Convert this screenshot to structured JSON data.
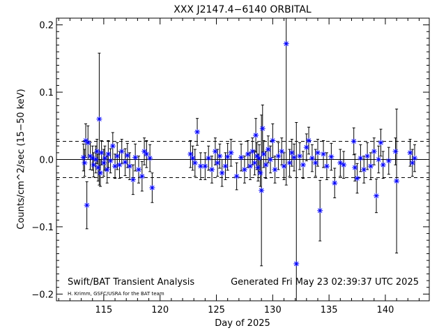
{
  "chart_data": {
    "type": "scatter",
    "title": "XXX J2147.4−6140 ORBITAL",
    "xlabel": "Day of 2025",
    "ylabel": "Counts/cm^2/sec (15−50 keV)",
    "xlim": [
      110.8,
      143.9
    ],
    "ylim": [
      -0.21,
      0.21
    ],
    "x_ticks": [
      115,
      120,
      125,
      130,
      135,
      140
    ],
    "x_tick_labels": [
      "115",
      "120",
      "125",
      "130",
      "135",
      "140"
    ],
    "y_ticks": [
      -0.2,
      -0.1,
      0.0,
      0.1,
      0.2
    ],
    "y_tick_labels": [
      "−0.2",
      "−0.1",
      "0.0",
      "0.1",
      "0.2"
    ],
    "reference_lines": {
      "zero": 0.0,
      "upper": 0.027,
      "lower": -0.027
    },
    "series_color": "#0000ff",
    "annotations": {
      "left_main": "Swift/BAT Transient Analysis",
      "left_credit": "H. Krimm, GSFC/USRA for the BAT team",
      "right": "Generated Fri May 23 02:39:37 UTC 2025"
    },
    "points": [
      {
        "x": 113.2,
        "y": 0.003,
        "err": 0.02
      },
      {
        "x": 113.3,
        "y": -0.005,
        "err": 0.02
      },
      {
        "x": 113.4,
        "y": 0.028,
        "err": 0.025
      },
      {
        "x": 113.5,
        "y": -0.068,
        "err": 0.035
      },
      {
        "x": 113.6,
        "y": 0.025,
        "err": 0.025
      },
      {
        "x": 113.8,
        "y": 0.005,
        "err": 0.02
      },
      {
        "x": 114.0,
        "y": 0.002,
        "err": 0.018
      },
      {
        "x": 114.1,
        "y": -0.008,
        "err": 0.018
      },
      {
        "x": 114.3,
        "y": 0.0,
        "err": 0.02
      },
      {
        "x": 114.4,
        "y": 0.012,
        "err": 0.018
      },
      {
        "x": 114.5,
        "y": -0.012,
        "err": 0.02
      },
      {
        "x": 114.6,
        "y": 0.06,
        "err": 0.098
      },
      {
        "x": 114.7,
        "y": -0.02,
        "err": 0.02
      },
      {
        "x": 114.8,
        "y": 0.01,
        "err": 0.018
      },
      {
        "x": 115.0,
        "y": -0.005,
        "err": 0.02
      },
      {
        "x": 115.1,
        "y": 0.002,
        "err": 0.018
      },
      {
        "x": 115.3,
        "y": -0.015,
        "err": 0.02
      },
      {
        "x": 115.4,
        "y": 0.008,
        "err": 0.02
      },
      {
        "x": 115.6,
        "y": -0.002,
        "err": 0.018
      },
      {
        "x": 115.8,
        "y": 0.02,
        "err": 0.02
      },
      {
        "x": 116.0,
        "y": -0.01,
        "err": 0.018
      },
      {
        "x": 116.2,
        "y": 0.005,
        "err": 0.02
      },
      {
        "x": 116.4,
        "y": -0.008,
        "err": 0.02
      },
      {
        "x": 116.6,
        "y": 0.012,
        "err": 0.018
      },
      {
        "x": 116.9,
        "y": -0.004,
        "err": 0.02
      },
      {
        "x": 117.1,
        "y": 0.006,
        "err": 0.018
      },
      {
        "x": 117.3,
        "y": -0.01,
        "err": 0.02
      },
      {
        "x": 117.6,
        "y": -0.03,
        "err": 0.022
      },
      {
        "x": 117.8,
        "y": 0.003,
        "err": 0.02
      },
      {
        "x": 118.1,
        "y": -0.015,
        "err": 0.02
      },
      {
        "x": 118.4,
        "y": -0.025,
        "err": 0.022
      },
      {
        "x": 118.6,
        "y": 0.012,
        "err": 0.02
      },
      {
        "x": 118.8,
        "y": 0.008,
        "err": 0.02
      },
      {
        "x": 119.1,
        "y": 0.002,
        "err": 0.02
      },
      {
        "x": 119.3,
        "y": -0.042,
        "err": 0.022
      },
      {
        "x": 122.7,
        "y": 0.008,
        "err": 0.02
      },
      {
        "x": 122.9,
        "y": 0.002,
        "err": 0.018
      },
      {
        "x": 123.1,
        "y": -0.005,
        "err": 0.02
      },
      {
        "x": 123.3,
        "y": 0.041,
        "err": 0.02
      },
      {
        "x": 123.6,
        "y": -0.01,
        "err": 0.02
      },
      {
        "x": 124.0,
        "y": -0.01,
        "err": 0.02
      },
      {
        "x": 124.3,
        "y": 0.002,
        "err": 0.018
      },
      {
        "x": 124.6,
        "y": -0.015,
        "err": 0.02
      },
      {
        "x": 124.9,
        "y": 0.012,
        "err": 0.02
      },
      {
        "x": 125.1,
        "y": -0.005,
        "err": 0.02
      },
      {
        "x": 125.3,
        "y": 0.005,
        "err": 0.018
      },
      {
        "x": 125.5,
        "y": -0.02,
        "err": 0.02
      },
      {
        "x": 125.8,
        "y": -0.01,
        "err": 0.02
      },
      {
        "x": 126.0,
        "y": 0.004,
        "err": 0.02
      },
      {
        "x": 126.3,
        "y": 0.01,
        "err": 0.02
      },
      {
        "x": 126.8,
        "y": -0.025,
        "err": 0.02
      },
      {
        "x": 127.2,
        "y": 0.003,
        "err": 0.02
      },
      {
        "x": 127.5,
        "y": -0.015,
        "err": 0.02
      },
      {
        "x": 127.8,
        "y": 0.008,
        "err": 0.02
      },
      {
        "x": 128.0,
        "y": -0.01,
        "err": 0.02
      },
      {
        "x": 128.2,
        "y": 0.012,
        "err": 0.02
      },
      {
        "x": 128.4,
        "y": -0.005,
        "err": 0.018
      },
      {
        "x": 128.5,
        "y": 0.036,
        "err": 0.025
      },
      {
        "x": 128.6,
        "y": 0.005,
        "err": 0.02
      },
      {
        "x": 128.7,
        "y": -0.012,
        "err": 0.02
      },
      {
        "x": 128.8,
        "y": 0.002,
        "err": 0.02
      },
      {
        "x": 128.9,
        "y": -0.02,
        "err": 0.02
      },
      {
        "x": 129.0,
        "y": -0.046,
        "err": 0.112
      },
      {
        "x": 129.1,
        "y": 0.046,
        "err": 0.035
      },
      {
        "x": 129.2,
        "y": 0.008,
        "err": 0.02
      },
      {
        "x": 129.4,
        "y": -0.008,
        "err": 0.02
      },
      {
        "x": 129.6,
        "y": 0.015,
        "err": 0.02
      },
      {
        "x": 129.8,
        "y": 0.0,
        "err": 0.02
      },
      {
        "x": 130.0,
        "y": 0.028,
        "err": 0.025
      },
      {
        "x": 130.2,
        "y": -0.015,
        "err": 0.02
      },
      {
        "x": 130.5,
        "y": 0.005,
        "err": 0.02
      },
      {
        "x": 130.8,
        "y": 0.012,
        "err": 0.02
      },
      {
        "x": 131.0,
        "y": -0.01,
        "err": 0.02
      },
      {
        "x": 131.2,
        "y": 0.172,
        "err": 0.21
      },
      {
        "x": 131.5,
        "y": -0.005,
        "err": 0.02
      },
      {
        "x": 131.7,
        "y": 0.01,
        "err": 0.02
      },
      {
        "x": 131.9,
        "y": 0.003,
        "err": 0.02
      },
      {
        "x": 132.1,
        "y": -0.155,
        "err": 0.21
      },
      {
        "x": 132.4,
        "y": 0.005,
        "err": 0.02
      },
      {
        "x": 132.7,
        "y": -0.008,
        "err": 0.02
      },
      {
        "x": 133.0,
        "y": 0.018,
        "err": 0.02
      },
      {
        "x": 133.2,
        "y": 0.028,
        "err": 0.02
      },
      {
        "x": 133.5,
        "y": 0.002,
        "err": 0.02
      },
      {
        "x": 133.8,
        "y": -0.005,
        "err": 0.02
      },
      {
        "x": 134.0,
        "y": 0.01,
        "err": 0.02
      },
      {
        "x": 134.2,
        "y": -0.076,
        "err": 0.045
      },
      {
        "x": 134.5,
        "y": 0.008,
        "err": 0.02
      },
      {
        "x": 134.8,
        "y": -0.01,
        "err": 0.02
      },
      {
        "x": 135.2,
        "y": 0.004,
        "err": 0.02
      },
      {
        "x": 135.5,
        "y": -0.035,
        "err": 0.022
      },
      {
        "x": 136.0,
        "y": -0.005,
        "err": 0.02
      },
      {
        "x": 136.3,
        "y": -0.008,
        "err": 0.02
      },
      {
        "x": 137.2,
        "y": 0.027,
        "err": 0.02
      },
      {
        "x": 137.3,
        "y": -0.012,
        "err": 0.02
      },
      {
        "x": 137.5,
        "y": -0.028,
        "err": 0.022
      },
      {
        "x": 137.8,
        "y": 0.002,
        "err": 0.02
      },
      {
        "x": 138.1,
        "y": -0.015,
        "err": 0.02
      },
      {
        "x": 138.4,
        "y": 0.005,
        "err": 0.02
      },
      {
        "x": 138.7,
        "y": -0.01,
        "err": 0.02
      },
      {
        "x": 139.0,
        "y": 0.012,
        "err": 0.02
      },
      {
        "x": 139.2,
        "y": -0.054,
        "err": 0.025
      },
      {
        "x": 139.4,
        "y": 0.0,
        "err": 0.02
      },
      {
        "x": 139.6,
        "y": 0.025,
        "err": 0.02
      },
      {
        "x": 139.8,
        "y": -0.008,
        "err": 0.02
      },
      {
        "x": 140.3,
        "y": -0.002,
        "err": 0.02
      },
      {
        "x": 140.9,
        "y": 0.012,
        "err": 0.02
      },
      {
        "x": 141.0,
        "y": -0.032,
        "err": 0.107
      },
      {
        "x": 142.2,
        "y": 0.01,
        "err": 0.02
      },
      {
        "x": 142.4,
        "y": -0.005,
        "err": 0.02
      },
      {
        "x": 142.6,
        "y": 0.002,
        "err": 0.02
      }
    ]
  }
}
